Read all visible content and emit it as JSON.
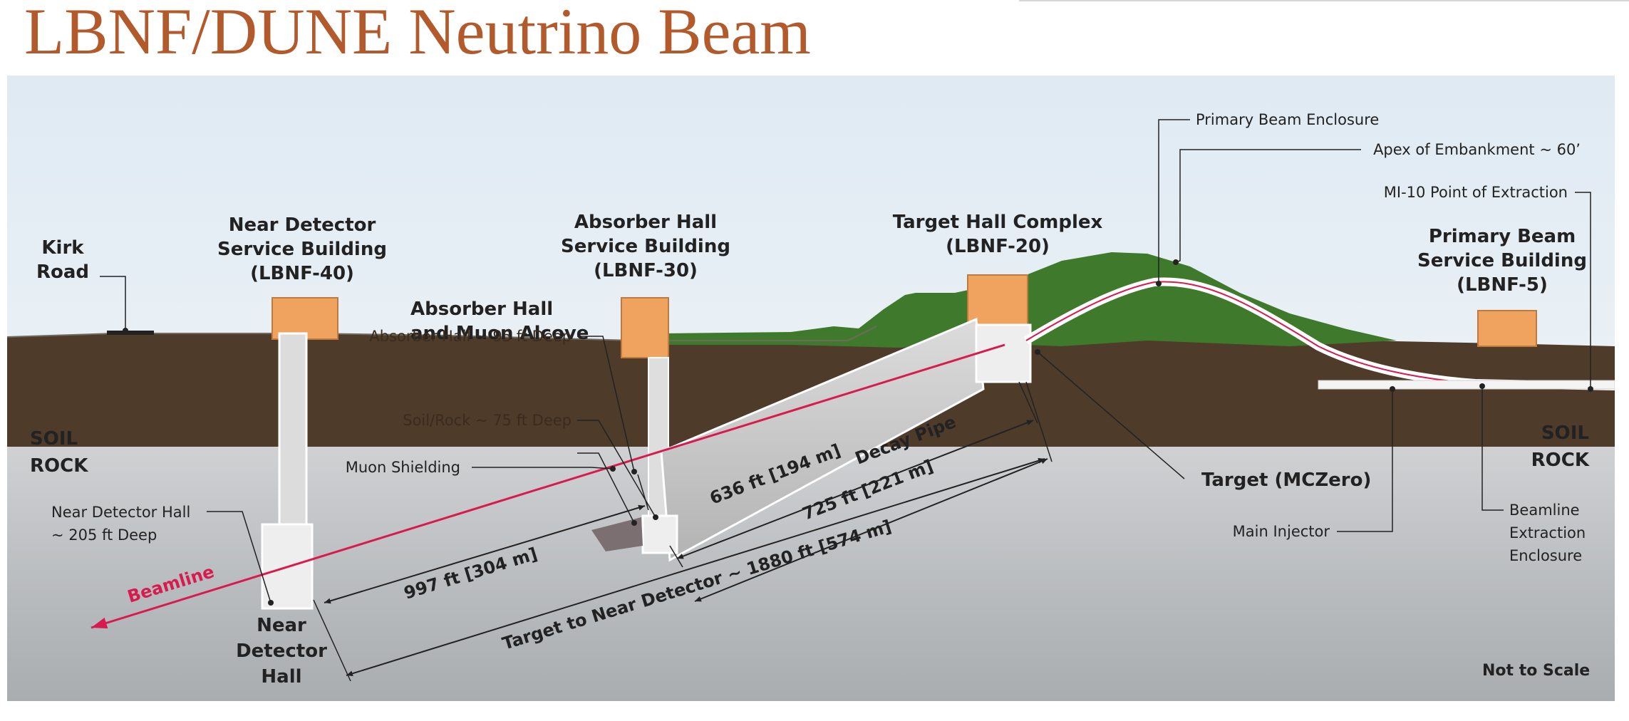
{
  "title": "LBNF/DUNE Neutrino Beam",
  "colors": {
    "title": "#b35a2c",
    "soil": "#4e3b2a",
    "rock": "#c4c6c8",
    "grass": "#3f7a2c",
    "building": "#f0a35e",
    "beamline": "#d81b4f",
    "sky": "#ecf4fa"
  },
  "labels": {
    "kirk_road": [
      "Kirk",
      "Road"
    ],
    "near_detector_service": [
      "Near Detector",
      "Service Building",
      "(LBNF-40)"
    ],
    "absorber_hall_service": [
      "Absorber Hall",
      "Service Building",
      "(LBNF-30)"
    ],
    "target_hall_complex": [
      "Target Hall Complex",
      "(LBNF-20)"
    ],
    "primary_beam_service": [
      "Primary Beam",
      "Service Building",
      "(LBNF-5)"
    ],
    "primary_beam_enclosure": "Primary Beam Enclosure",
    "apex": "Apex of Embankment ~ 60’",
    "mi10": "MI-10 Point of Extraction",
    "absorber_muon_alcove": [
      "Absorber Hall",
      "and Muon Alcove"
    ],
    "absorber_deep": "Absorber Hall ~ 95 ft Deep",
    "soil_rock_deep": "Soil/Rock ~ 75 ft Deep",
    "muon_shielding": "Muon Shielding",
    "soil_left": "SOIL",
    "rock_left": "ROCK",
    "soil_right": "SOIL",
    "rock_right": "ROCK",
    "near_detector_hall_depth": [
      "Near Detector Hall",
      "~ 205 ft Deep"
    ],
    "near_detector_hall": [
      "Near",
      "Detector",
      "Hall"
    ],
    "beamline": "Beamline",
    "decay_pipe": "Decay Pipe",
    "dim_636": "636 ft [194 m]",
    "dim_725": "725 ft [221 m]",
    "dim_997": "997 ft [304 m]",
    "dim_1880": "Target to Near Detector ~ 1880 ft [574 m]",
    "target": "Target (MCZero)",
    "main_injector": "Main Injector",
    "beamline_extraction": [
      "Beamline",
      "Extraction",
      "Enclosure"
    ],
    "not_to_scale": "Not to Scale"
  }
}
